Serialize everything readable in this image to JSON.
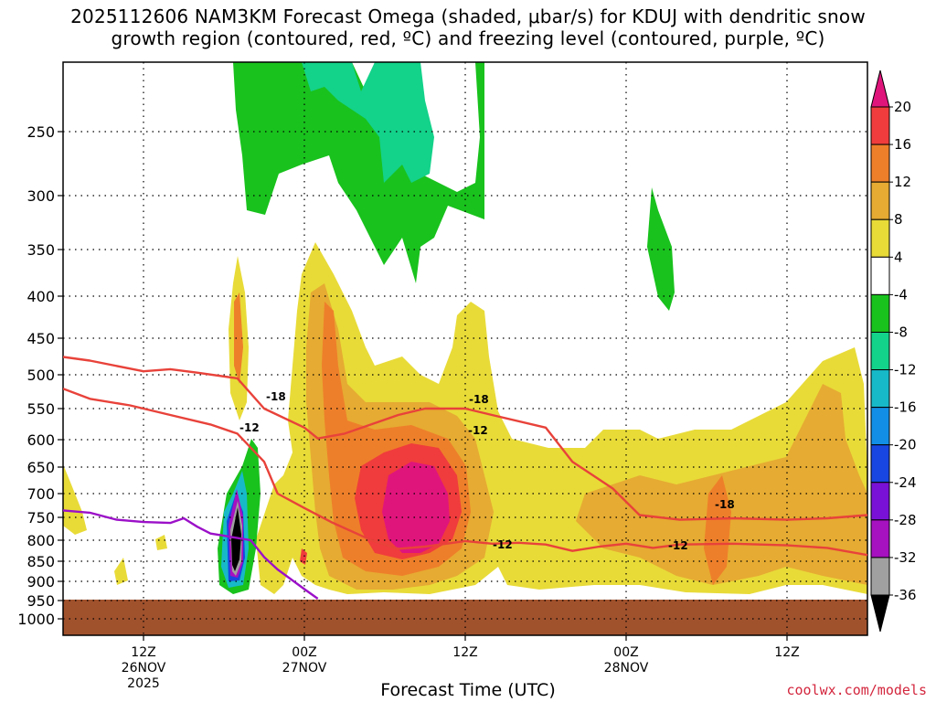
{
  "chart_data": {
    "type": "heatmap",
    "title_line1": "2025112606 NAM3KM Forecast Omega (shaded, μbar/s) for KDUJ with dendritic snow",
    "title_line2": "growth region (contoured, red, ºC) and freezing level (contoured, purple, ºC)",
    "xlabel": "Forecast Time (UTC)",
    "ylabel": "",
    "y_levels_hpa": [
      "250",
      "300",
      "350",
      "400",
      "450",
      "500",
      "550",
      "600",
      "650",
      "700",
      "750",
      "800",
      "850",
      "900",
      "950",
      "1000"
    ],
    "x_ticks": [
      {
        "hour": 6,
        "line1": "12Z",
        "line2": "26NOV",
        "line3": "2025"
      },
      {
        "hour": 18,
        "line1": "00Z",
        "line2": "27NOV",
        "line3": ""
      },
      {
        "hour": 30,
        "line1": "12Z",
        "line2": "",
        "line3": ""
      },
      {
        "hour": 42,
        "line1": "00Z",
        "line2": "28NOV",
        "line3": ""
      },
      {
        "hour": 54,
        "line1": "12Z",
        "line2": "",
        "line3": ""
      }
    ],
    "x_range_hours": [
      0,
      60
    ],
    "y_range_hpa": [
      200,
      1050
    ],
    "grid": true,
    "colorbar": {
      "ticks": [
        "20",
        "16",
        "12",
        "8",
        "4",
        "-4",
        "-8",
        "-12",
        "-16",
        "-20",
        "-24",
        "-28",
        "-32",
        "-36"
      ],
      "colors": [
        "#e0157c",
        "#f03c3c",
        "#ee7f2a",
        "#e6ab32",
        "#e8db38",
        "#ffffff",
        "#19c21d",
        "#13d28a",
        "#17b9c8",
        "#128ee6",
        "#1846e0",
        "#7a11d6",
        "#a611c0",
        "#a0a0a0",
        "#000000"
      ]
    },
    "contour_labels": [
      {
        "text": "-18",
        "color": "#e8423a"
      },
      {
        "text": "-12",
        "color": "#e8423a"
      },
      {
        "text": "-18",
        "color": "#e8423a"
      },
      {
        "text": "-12",
        "color": "#e8423a"
      },
      {
        "text": "-18",
        "color": "#e8423a"
      },
      {
        "text": "-12",
        "color": "#e8423a"
      },
      {
        "text": "-12",
        "color": "#e8423a"
      }
    ],
    "series": [
      {
        "name": "-18",
        "kind": "dgz-top",
        "x": [
          0,
          2,
          6,
          8,
          10,
          13,
          15,
          18,
          19,
          21,
          25,
          27,
          30,
          32,
          36,
          38,
          41,
          43,
          46,
          50,
          54,
          57,
          60
        ],
        "y": [
          475,
          480,
          495,
          492,
          497,
          505,
          550,
          580,
          598,
          590,
          560,
          550,
          550,
          560,
          580,
          640,
          690,
          745,
          755,
          752,
          755,
          752,
          745
        ]
      },
      {
        "name": "-12",
        "kind": "dgz-bottom",
        "x": [
          0,
          2,
          5,
          8,
          11,
          13,
          15,
          16,
          18,
          20,
          23,
          25,
          27,
          30,
          32,
          34,
          36,
          38,
          40,
          42,
          44,
          46,
          50,
          54,
          57,
          60
        ],
        "y": [
          520,
          535,
          545,
          560,
          575,
          590,
          640,
          700,
          730,
          760,
          800,
          820,
          815,
          802,
          808,
          806,
          810,
          825,
          815,
          808,
          818,
          810,
          808,
          812,
          818,
          835
        ]
      },
      {
        "name": "0",
        "kind": "freezing-level",
        "x": [
          0,
          2,
          4,
          6,
          8,
          9,
          10,
          11,
          12,
          13,
          14,
          15,
          16,
          18,
          19
        ],
        "y": [
          735,
          740,
          755,
          760,
          762,
          752,
          770,
          785,
          790,
          795,
          800,
          840,
          870,
          920,
          945
        ]
      }
    ],
    "terrain_below_hpa": 950
  },
  "credit": "coolwx.com/models"
}
